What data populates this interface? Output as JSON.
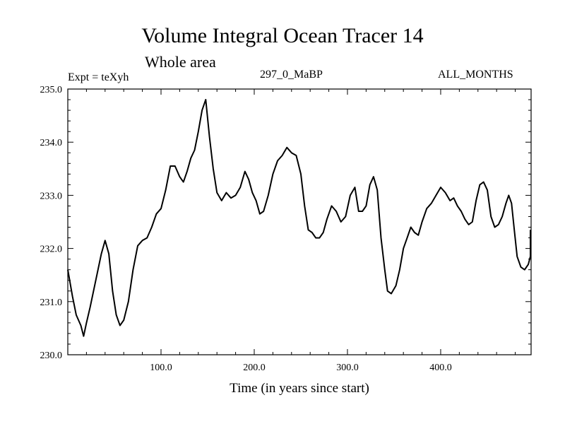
{
  "chart_data": {
    "type": "line",
    "title": "Volume Integral Ocean Tracer 14",
    "subtitle": "Whole area",
    "annotations": {
      "left": "Expt = teXyh",
      "center": "297_0_MaBP",
      "right": "ALL_MONTHS"
    },
    "xlabel": "Time (in years since start)",
    "ylabel": "",
    "xlim": [
      0,
      497
    ],
    "ylim": [
      230.0,
      235.0
    ],
    "xticks": [
      100,
      200,
      300,
      400
    ],
    "xtick_labels": [
      "100.0",
      "200.0",
      "300.0",
      "400.0"
    ],
    "yticks": [
      230,
      231,
      232,
      233,
      234,
      235
    ],
    "ytick_labels": [
      "230.0",
      "231.0",
      "232.0",
      "233.0",
      "234.0",
      "235.0"
    ],
    "grid": false,
    "line_color": "#000000",
    "series": [
      {
        "name": "",
        "points": [
          [
            0,
            231.6
          ],
          [
            5,
            231.1
          ],
          [
            9,
            230.75
          ],
          [
            14,
            230.55
          ],
          [
            17,
            230.35
          ],
          [
            20,
            230.6
          ],
          [
            24,
            230.9
          ],
          [
            30,
            231.4
          ],
          [
            36,
            231.9
          ],
          [
            40,
            232.15
          ],
          [
            44,
            231.9
          ],
          [
            48,
            231.2
          ],
          [
            52,
            230.75
          ],
          [
            56,
            230.55
          ],
          [
            60,
            230.65
          ],
          [
            65,
            231.0
          ],
          [
            70,
            231.6
          ],
          [
            75,
            232.05
          ],
          [
            80,
            232.15
          ],
          [
            85,
            232.2
          ],
          [
            90,
            232.4
          ],
          [
            95,
            232.65
          ],
          [
            100,
            232.75
          ],
          [
            105,
            233.1
          ],
          [
            110,
            233.55
          ],
          [
            115,
            233.55
          ],
          [
            120,
            233.35
          ],
          [
            124,
            233.25
          ],
          [
            128,
            233.45
          ],
          [
            132,
            233.7
          ],
          [
            136,
            233.85
          ],
          [
            140,
            234.2
          ],
          [
            144,
            234.6
          ],
          [
            148,
            234.8
          ],
          [
            152,
            234.1
          ],
          [
            156,
            233.5
          ],
          [
            160,
            233.05
          ],
          [
            165,
            232.9
          ],
          [
            170,
            233.05
          ],
          [
            175,
            232.95
          ],
          [
            180,
            233.0
          ],
          [
            185,
            233.15
          ],
          [
            190,
            233.45
          ],
          [
            194,
            233.3
          ],
          [
            198,
            233.05
          ],
          [
            202,
            232.9
          ],
          [
            206,
            232.65
          ],
          [
            210,
            232.7
          ],
          [
            215,
            233.0
          ],
          [
            220,
            233.4
          ],
          [
            225,
            233.65
          ],
          [
            230,
            233.75
          ],
          [
            235,
            233.9
          ],
          [
            240,
            233.8
          ],
          [
            245,
            233.75
          ],
          [
            250,
            233.4
          ],
          [
            254,
            232.8
          ],
          [
            258,
            232.35
          ],
          [
            262,
            232.3
          ],
          [
            266,
            232.2
          ],
          [
            270,
            232.2
          ],
          [
            274,
            232.3
          ],
          [
            278,
            232.55
          ],
          [
            283,
            232.8
          ],
          [
            288,
            232.7
          ],
          [
            293,
            232.5
          ],
          [
            298,
            232.6
          ],
          [
            303,
            233.0
          ],
          [
            308,
            233.15
          ],
          [
            312,
            232.7
          ],
          [
            316,
            232.7
          ],
          [
            320,
            232.8
          ],
          [
            324,
            233.2
          ],
          [
            328,
            233.35
          ],
          [
            332,
            233.1
          ],
          [
            336,
            232.2
          ],
          [
            340,
            231.6
          ],
          [
            343,
            231.2
          ],
          [
            347,
            231.15
          ],
          [
            352,
            231.3
          ],
          [
            356,
            231.6
          ],
          [
            360,
            232.0
          ],
          [
            364,
            232.2
          ],
          [
            368,
            232.4
          ],
          [
            372,
            232.3
          ],
          [
            376,
            232.25
          ],
          [
            380,
            232.5
          ],
          [
            385,
            232.75
          ],
          [
            390,
            232.85
          ],
          [
            395,
            233.0
          ],
          [
            400,
            233.15
          ],
          [
            405,
            233.05
          ],
          [
            410,
            232.9
          ],
          [
            414,
            232.95
          ],
          [
            418,
            232.8
          ],
          [
            422,
            232.7
          ],
          [
            426,
            232.55
          ],
          [
            430,
            232.45
          ],
          [
            434,
            232.5
          ],
          [
            438,
            232.9
          ],
          [
            442,
            233.2
          ],
          [
            446,
            233.25
          ],
          [
            450,
            233.1
          ],
          [
            454,
            232.6
          ],
          [
            458,
            232.4
          ],
          [
            462,
            232.45
          ],
          [
            466,
            232.6
          ],
          [
            470,
            232.85
          ],
          [
            473,
            233.0
          ],
          [
            476,
            232.85
          ],
          [
            479,
            232.35
          ],
          [
            482,
            231.85
          ],
          [
            486,
            231.65
          ],
          [
            490,
            231.6
          ],
          [
            494,
            231.7
          ],
          [
            498,
            231.85
          ],
          [
            501,
            232.05
          ],
          [
            504,
            232.35
          ]
        ]
      }
    ]
  }
}
